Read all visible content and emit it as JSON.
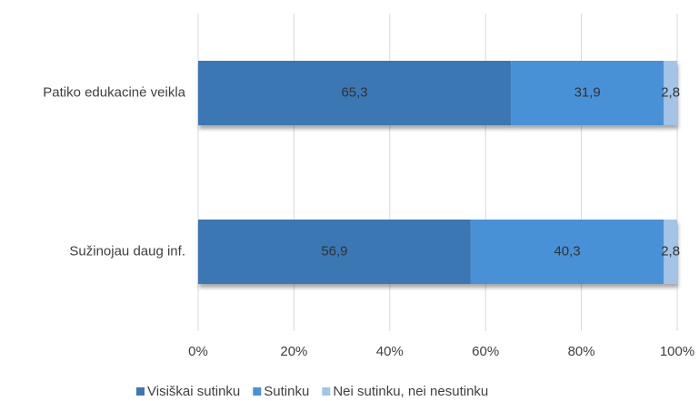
{
  "chart_data": {
    "type": "stacked-barh",
    "categories": [
      "Patiko edukacinė veikla",
      "Sužinojau daug inf."
    ],
    "series": [
      {
        "name": "Visiškai sutinku",
        "color": "#3b77b3",
        "values": [
          65.3,
          56.9
        ],
        "value_labels": [
          "65,3",
          "56,9"
        ]
      },
      {
        "name": "Sutinku",
        "color": "#4a91d6",
        "values": [
          31.9,
          40.3
        ],
        "value_labels": [
          "31,9",
          "40,3"
        ]
      },
      {
        "name": "Nei sutinku, nei nesutinku",
        "color": "#a3c4e6",
        "values": [
          2.8,
          2.8
        ],
        "value_labels": [
          "2,8",
          "2,8"
        ]
      }
    ],
    "xlim": [
      0,
      100
    ],
    "xticks": [
      {
        "value": 0,
        "label": "0%"
      },
      {
        "value": 20,
        "label": "20%"
      },
      {
        "value": 40,
        "label": "40%"
      },
      {
        "value": 60,
        "label": "60%"
      },
      {
        "value": 80,
        "label": "80%"
      },
      {
        "value": 100,
        "label": "100%"
      }
    ],
    "grid": true,
    "legend": "bottom"
  }
}
